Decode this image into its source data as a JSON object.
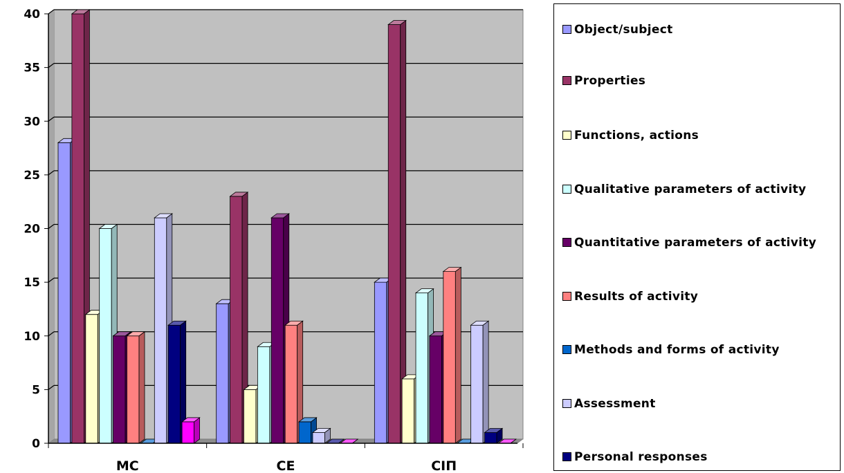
{
  "chart_data": {
    "type": "bar",
    "categories": [
      "MC",
      "CE",
      "CIП"
    ],
    "yticks": [
      "0",
      "5",
      "10",
      "15",
      "20",
      "25",
      "30",
      "35",
      "40"
    ],
    "ylim": [
      0,
      40
    ],
    "grid": true,
    "legend_position": "right",
    "series": [
      {
        "name": "Object/subject",
        "color": "#9999ff",
        "values": [
          28,
          13,
          15
        ]
      },
      {
        "name": "Properties",
        "color": "#993366",
        "values": [
          40,
          23,
          39
        ]
      },
      {
        "name": "Functions, actions",
        "color": "#ffffcc",
        "values": [
          12,
          5,
          6
        ]
      },
      {
        "name": "Qualitative parameters of activity",
        "color": "#ccffff",
        "values": [
          20,
          9,
          14
        ]
      },
      {
        "name": "Quantitative parameters of activity",
        "color": "#660066",
        "values": [
          10,
          21,
          10
        ]
      },
      {
        "name": "Results of activity",
        "color": "#ff8080",
        "values": [
          10,
          11,
          16
        ]
      },
      {
        "name": "Methods and forms of activity",
        "color": "#0066cc",
        "values": [
          0,
          2,
          0
        ]
      },
      {
        "name": "Assessment",
        "color": "#ccccff",
        "values": [
          21,
          1,
          11
        ]
      },
      {
        "name": "Personal responses",
        "color": "#000080",
        "values": [
          11,
          0,
          1
        ]
      },
      {
        "name": "",
        "color": "#ff00ff",
        "values": [
          2,
          0,
          0
        ]
      }
    ]
  }
}
